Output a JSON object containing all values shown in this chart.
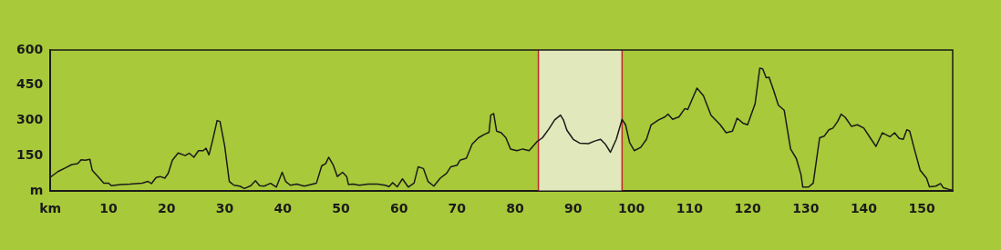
{
  "chart_data": {
    "type": "line",
    "marker": "none",
    "line_style": "solid",
    "grid": false,
    "legend": false,
    "x": [
      0,
      1.3,
      2.6,
      3.7,
      4.7,
      5.3,
      6,
      6.8,
      7.2,
      8.2,
      9.2,
      10,
      10.5,
      12.1,
      13.7,
      15.8,
      16.8,
      17.4,
      18.2,
      18.9,
      19.7,
      20.3,
      21,
      22,
      23.2,
      23.9,
      24.7,
      25.5,
      26.3,
      26.8,
      27.3,
      27.9,
      28.7,
      29.2,
      30,
      30.8,
      31.6,
      32.6,
      33.4,
      34.5,
      35.3,
      36,
      36.8,
      37.9,
      38.9,
      39.9,
      40.5,
      41.3,
      42.4,
      43.7,
      45.8,
      46.7,
      47.4,
      47.9,
      48.7,
      49.4,
      50.3,
      51,
      51.3,
      52.1,
      53.2,
      54.7,
      56.3,
      57.6,
      58.3,
      58.9,
      59.7,
      60.6,
      61.6,
      62.6,
      63.3,
      64.2,
      65,
      66,
      67.1,
      68.2,
      68.9,
      70,
      70.5,
      71.6,
      72.6,
      73.7,
      74.7,
      75.5,
      75.8,
      76.3,
      76.8,
      77.6,
      78.4,
      79.2,
      80.3,
      81.3,
      82.4,
      83.7,
      84.7,
      85.8,
      86.8,
      87.8,
      88.3,
      88.9,
      90,
      91.1,
      92.6,
      93.7,
      94.7,
      95.5,
      96.4,
      97.4,
      98.4,
      99,
      99.7,
      100.5,
      101.6,
      102.6,
      103.4,
      104.7,
      105.8,
      106.3,
      107.1,
      108.2,
      109.2,
      109.7,
      111.3,
      112.4,
      113.7,
      115.3,
      116.3,
      117.4,
      118.2,
      119.2,
      120,
      121.3,
      122.1,
      122.6,
      123.2,
      123.7,
      124.5,
      125.3,
      126.3,
      127.4,
      128.4,
      129.2,
      129.5,
      130.5,
      131.3,
      132.4,
      133.2,
      134,
      134.7,
      135.5,
      136.1,
      136.8,
      137.9,
      138.9,
      140,
      141.1,
      142.1,
      143.2,
      144.5,
      145.3,
      146.1,
      146.8,
      147.4,
      147.9,
      148.7,
      149.7,
      150.8,
      151.3,
      152.4,
      153.2,
      153.7,
      154.7,
      155.3
    ],
    "values": [
      59,
      83,
      99,
      113,
      117,
      133,
      131,
      135,
      89,
      62,
      34,
      34,
      23,
      28,
      30,
      34,
      41,
      32,
      58,
      62,
      55,
      76,
      131,
      162,
      151,
      161,
      144,
      172,
      172,
      182,
      154,
      213,
      300,
      296,
      193,
      41,
      25,
      21,
      11,
      23,
      44,
      23,
      21,
      33,
      17,
      80,
      41,
      25,
      30,
      21,
      34,
      107,
      117,
      144,
      110,
      62,
      80,
      62,
      28,
      30,
      25,
      30,
      30,
      25,
      19,
      36,
      18,
      52,
      17,
      34,
      103,
      96,
      41,
      21,
      55,
      76,
      103,
      110,
      131,
      140,
      200,
      227,
      241,
      250,
      323,
      330,
      255,
      248,
      227,
      179,
      172,
      179,
      172,
      209,
      227,
      264,
      303,
      323,
      303,
      259,
      220,
      204,
      202,
      213,
      220,
      200,
      165,
      220,
      305,
      282,
      206,
      172,
      186,
      220,
      282,
      303,
      316,
      327,
      305,
      316,
      351,
      347,
      438,
      406,
      323,
      282,
      248,
      255,
      310,
      289,
      282,
      372,
      523,
      520,
      482,
      484,
      427,
      365,
      344,
      179,
      138,
      69,
      17,
      17,
      34,
      227,
      234,
      261,
      268,
      296,
      327,
      314,
      275,
      282,
      268,
      227,
      190,
      248,
      231,
      248,
      224,
      220,
      261,
      255,
      179,
      89,
      55,
      18,
      21,
      32,
      14,
      7,
      4
    ],
    "color": "#1a1a1a",
    "xlim": [
      0,
      155.3
    ],
    "xticks": [
      {
        "value": 0,
        "label": "km"
      },
      10,
      20,
      30,
      40,
      50,
      60,
      70,
      80,
      90,
      100,
      110,
      120,
      130,
      140,
      150
    ],
    "ylim": [
      0,
      600
    ],
    "yticks": [
      {
        "value": 0,
        "label": "m"
      },
      150,
      300,
      450,
      600
    ],
    "bands": [
      {
        "axis": "x",
        "from": 84,
        "to": 98.4,
        "color": "#e1e8bb"
      }
    ],
    "ref_lines": [
      {
        "axis": "x",
        "value": 84,
        "color": "#c0272d"
      },
      {
        "axis": "x",
        "value": 98.4,
        "color": "#c0272d"
      }
    ]
  }
}
